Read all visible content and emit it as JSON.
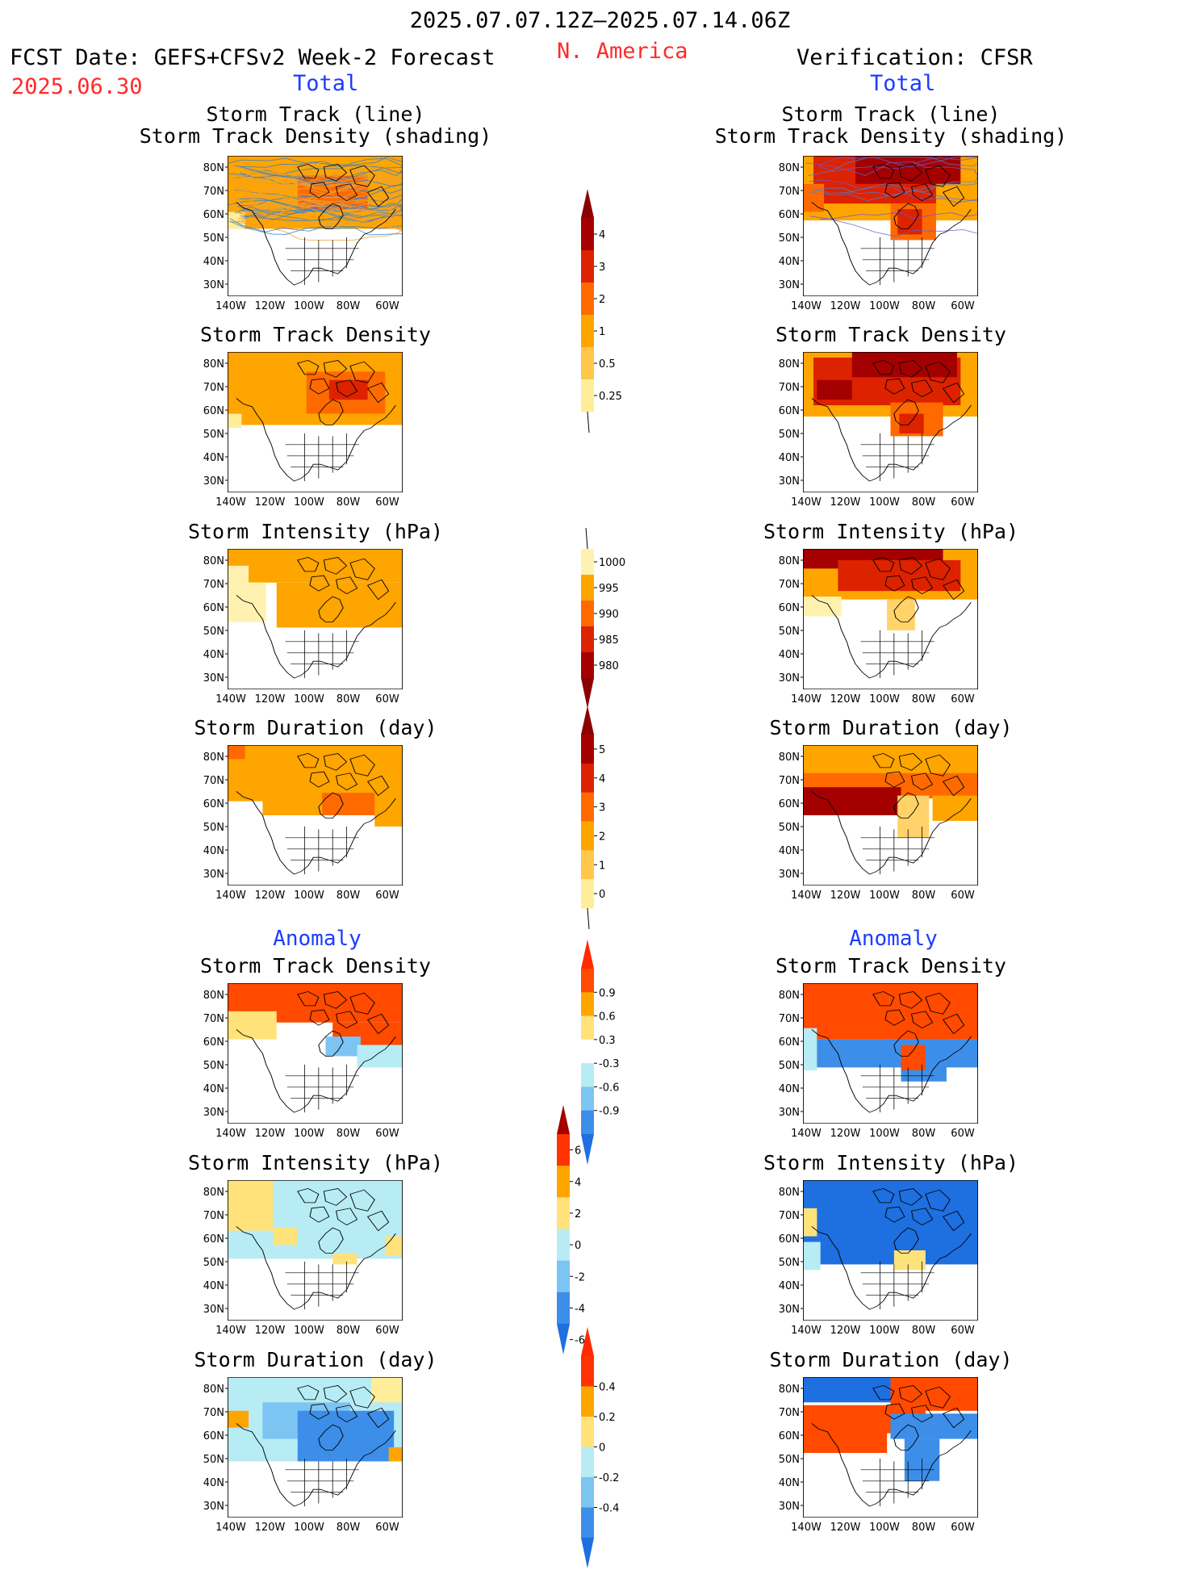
{
  "header": {
    "period": "2025.07.07.12Z–2025.07.14.06Z",
    "region": "N. America",
    "fcst_label": "FCST Date: GEFS+CFSv2 Week-2 Forecast",
    "fcst_date": "2025.06.30",
    "verification": "Verification: CFSR",
    "left_total": "Total",
    "right_total": "Total"
  },
  "sections": {
    "left_anomaly": "Anomaly",
    "right_anomaly": "Anomaly"
  },
  "axes": {
    "lon_labels": [
      "140W",
      "120W",
      "100W",
      "80W",
      "60W"
    ],
    "lat_labels": [
      "80N",
      "70N",
      "60N",
      "50N",
      "40N",
      "30N"
    ]
  },
  "panels": {
    "left": [
      {
        "title_1": "Storm Track (line)",
        "title_2": "Storm Track Density (shading)"
      },
      {
        "title_1": "Storm Track Density",
        "title_2": ""
      },
      {
        "title_1": "Storm Intensity (hPa)",
        "title_2": ""
      },
      {
        "title_1": "Storm Duration (day)",
        "title_2": ""
      },
      {
        "title_1": "Storm Track Density",
        "title_2": ""
      },
      {
        "title_1": "Storm Intensity (hPa)",
        "title_2": ""
      },
      {
        "title_1": "Storm Duration (day)",
        "title_2": ""
      }
    ],
    "right": [
      {
        "title_1": "Storm Track (line)",
        "title_2": "Storm Track Density (shading)"
      },
      {
        "title_1": "Storm Track Density",
        "title_2": ""
      },
      {
        "title_1": "Storm Intensity (hPa)",
        "title_2": ""
      },
      {
        "title_1": "Storm Duration (day)",
        "title_2": ""
      },
      {
        "title_1": "Storm Track Density",
        "title_2": ""
      },
      {
        "title_1": "Storm Intensity (hPa)",
        "title_2": ""
      },
      {
        "title_1": "Storm Duration (day)",
        "title_2": ""
      }
    ]
  },
  "colorbars": [
    {
      "name": "density",
      "labels": [
        "4",
        "3",
        "2",
        "1",
        "0.5",
        "0.25"
      ],
      "colors": [
        "#a50000",
        "#dd2200",
        "#ff6a00",
        "#ffa500",
        "#ffc84a",
        "#ffee99"
      ],
      "top_arrow": "#8b0000",
      "bottom_arrow": "line"
    },
    {
      "name": "intensity",
      "labels": [
        "1000",
        "995",
        "990",
        "985",
        "980"
      ],
      "colors": [
        "#fff2b0",
        "#ffa500",
        "#ff6a00",
        "#dd2200",
        "#a50000"
      ],
      "top_arrow": "line",
      "bottom_arrow": "#8b0000"
    },
    {
      "name": "duration",
      "labels": [
        "5",
        "4",
        "3",
        "2",
        "1",
        "0"
      ],
      "colors": [
        "#a50000",
        "#dd2200",
        "#ff6a00",
        "#ffa500",
        "#ffc84a",
        "#ffee99"
      ],
      "top_arrow": "#8b0000",
      "bottom_arrow": "line"
    },
    {
      "name": "density-anomaly",
      "labels": [
        "0.9",
        "0.6",
        "0.3",
        "-0.3",
        "-0.6",
        "-0.9"
      ],
      "colors": [
        "#ff4a00",
        "#ffa500",
        "#ffe27a",
        "#ffffff",
        "#b7ecf5",
        "#7cc4f2",
        "#3d8ee8"
      ],
      "top_arrow": "#ff2a00",
      "bottom_arrow": "#1e6fe0"
    },
    {
      "name": "intensity-anomaly",
      "labels": [
        "6",
        "4",
        "2",
        "0",
        "-2",
        "-4",
        "-6"
      ],
      "colors": [
        "#ff3300",
        "#ffa500",
        "#ffe27a",
        "#b7ecf5",
        "#7cc4f2",
        "#3d8ee8"
      ],
      "top_arrow": "#a50000",
      "bottom_arrow": "#1e6fe0"
    },
    {
      "name": "duration-anomaly",
      "labels": [
        "0.4",
        "0.2",
        "0",
        "-0.2",
        "-0.4"
      ],
      "colors": [
        "#ff3300",
        "#ffa500",
        "#ffe27a",
        "#b7ecf5",
        "#7cc4f2",
        "#3d8ee8"
      ],
      "top_arrow": "#ff2a00",
      "bottom_arrow": "#1e6fe0"
    }
  ],
  "palette": {
    "title_red": "#ff2a2a",
    "section_blue": "#1a3cff"
  }
}
